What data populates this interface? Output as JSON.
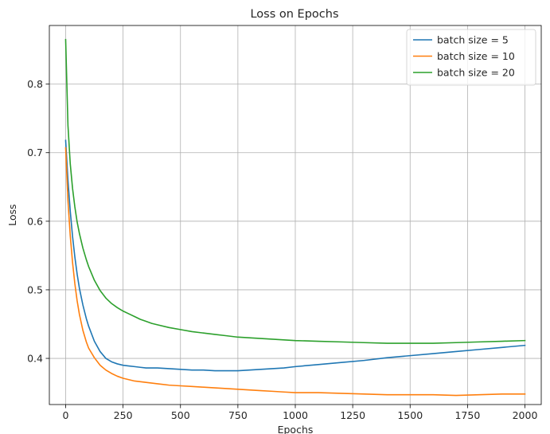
{
  "chart_data": {
    "type": "line",
    "title": "Loss on Epochs",
    "xlabel": "Epochs",
    "ylabel": "Loss",
    "xlim": [
      -71,
      2071
    ],
    "ylim": [
      0.3327,
      0.8855
    ],
    "xticks": [
      0,
      250,
      500,
      750,
      1000,
      1250,
      1500,
      1750,
      2000
    ],
    "yticks": [
      0.4,
      0.5,
      0.6,
      0.7,
      0.8
    ],
    "grid": true,
    "legend_position": "top-right",
    "series": [
      {
        "name": "batch size = 5",
        "color": "#1f77b4",
        "x": [
          0,
          10,
          20,
          30,
          40,
          50,
          60,
          75,
          90,
          100,
          125,
          150,
          175,
          200,
          225,
          250,
          275,
          300,
          325,
          350,
          375,
          400,
          450,
          500,
          550,
          600,
          650,
          700,
          750,
          800,
          850,
          900,
          950,
          1000,
          1100,
          1200,
          1300,
          1400,
          1500,
          1600,
          1700,
          1800,
          1900,
          2000
        ],
        "y": [
          0.718,
          0.66,
          0.615,
          0.578,
          0.548,
          0.523,
          0.502,
          0.478,
          0.458,
          0.447,
          0.425,
          0.41,
          0.4,
          0.395,
          0.392,
          0.39,
          0.389,
          0.388,
          0.387,
          0.386,
          0.386,
          0.386,
          0.385,
          0.384,
          0.383,
          0.383,
          0.382,
          0.382,
          0.382,
          0.383,
          0.384,
          0.385,
          0.386,
          0.388,
          0.391,
          0.394,
          0.397,
          0.401,
          0.404,
          0.407,
          0.41,
          0.413,
          0.416,
          0.419
        ]
      },
      {
        "name": "batch size = 10",
        "color": "#ff7f0e",
        "x": [
          0,
          10,
          20,
          30,
          40,
          50,
          60,
          75,
          90,
          100,
          125,
          150,
          175,
          200,
          225,
          250,
          275,
          300,
          325,
          350,
          375,
          400,
          450,
          500,
          550,
          600,
          650,
          700,
          750,
          800,
          850,
          900,
          950,
          1000,
          1100,
          1200,
          1300,
          1400,
          1500,
          1600,
          1700,
          1800,
          1900,
          2000
        ],
        "y": [
          0.707,
          0.63,
          0.579,
          0.54,
          0.509,
          0.484,
          0.464,
          0.441,
          0.424,
          0.415,
          0.401,
          0.39,
          0.383,
          0.378,
          0.374,
          0.371,
          0.369,
          0.367,
          0.366,
          0.365,
          0.364,
          0.363,
          0.361,
          0.36,
          0.359,
          0.358,
          0.357,
          0.356,
          0.355,
          0.354,
          0.353,
          0.352,
          0.351,
          0.35,
          0.35,
          0.349,
          0.348,
          0.347,
          0.347,
          0.347,
          0.346,
          0.347,
          0.348,
          0.348
        ]
      },
      {
        "name": "batch size = 20",
        "color": "#2ca02c",
        "x": [
          0,
          10,
          20,
          30,
          40,
          50,
          60,
          75,
          90,
          100,
          125,
          150,
          175,
          200,
          225,
          250,
          275,
          300,
          325,
          350,
          375,
          400,
          450,
          500,
          550,
          600,
          650,
          700,
          750,
          800,
          850,
          900,
          950,
          1000,
          1100,
          1200,
          1300,
          1400,
          1500,
          1600,
          1700,
          1800,
          1900,
          2000
        ],
        "y": [
          0.865,
          0.74,
          0.684,
          0.648,
          0.621,
          0.599,
          0.582,
          0.561,
          0.544,
          0.534,
          0.514,
          0.499,
          0.488,
          0.48,
          0.474,
          0.469,
          0.465,
          0.461,
          0.457,
          0.454,
          0.451,
          0.449,
          0.445,
          0.442,
          0.439,
          0.437,
          0.435,
          0.433,
          0.431,
          0.43,
          0.429,
          0.428,
          0.427,
          0.426,
          0.425,
          0.424,
          0.423,
          0.422,
          0.422,
          0.422,
          0.423,
          0.424,
          0.425,
          0.426
        ]
      }
    ]
  }
}
